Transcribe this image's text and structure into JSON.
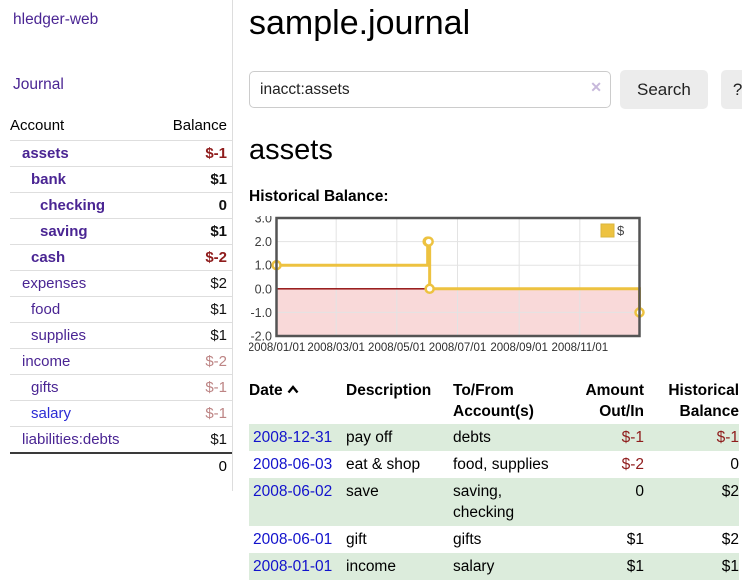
{
  "sidebar": {
    "brand": "hledger-web",
    "journal_link": "Journal",
    "col_account": "Account",
    "col_balance": "Balance",
    "accounts": [
      {
        "name": "assets",
        "level": 1,
        "bold": true,
        "balance": "$-1",
        "balance_style": "neg-strong"
      },
      {
        "name": "bank",
        "level": 2,
        "bold": true,
        "balance": "$1",
        "balance_style": "pos-strong"
      },
      {
        "name": "checking",
        "level": 3,
        "bold": true,
        "balance": "0",
        "balance_style": "pos-strong"
      },
      {
        "name": "saving",
        "level": 3,
        "bold": true,
        "balance": "$1",
        "balance_style": "pos-strong"
      },
      {
        "name": "cash",
        "level": 2,
        "bold": true,
        "balance": "$-2",
        "balance_style": "neg-strong"
      },
      {
        "name": "expenses",
        "level": 1,
        "bold": false,
        "balance": "$2",
        "balance_style": "pos"
      },
      {
        "name": "food",
        "level": 2,
        "bold": false,
        "balance": "$1",
        "balance_style": "pos"
      },
      {
        "name": "supplies",
        "level": 2,
        "bold": false,
        "balance": "$1",
        "balance_style": "pos"
      },
      {
        "name": "income",
        "level": 1,
        "bold": false,
        "balance": "$-2",
        "balance_style": "neg-soft"
      },
      {
        "name": "gifts",
        "level": 2,
        "bold": false,
        "balance": "$-1",
        "balance_style": "neg-soft"
      },
      {
        "name": "salary",
        "level": 2,
        "bold": false,
        "balance": "$-1",
        "balance_style": "neg-soft",
        "link_style": "blue"
      },
      {
        "name": "liabilities:debts",
        "level": 1,
        "bold": false,
        "balance": "$1",
        "balance_style": "pos"
      }
    ],
    "total": "0"
  },
  "header": {
    "title": "sample.journal"
  },
  "search": {
    "value": "inacct:assets",
    "clear_icon": "✕",
    "search_button": "Search",
    "help_button": "?"
  },
  "account_view": {
    "heading": "assets",
    "chart_title": "Historical Balance:"
  },
  "chart_data": {
    "type": "line",
    "step": true,
    "title": "Historical Balance",
    "series": [
      {
        "name": "$",
        "color": "#edc240",
        "points": [
          [
            "2008-01-01",
            1
          ],
          [
            "2008-06-01",
            2
          ],
          [
            "2008-06-02",
            2
          ],
          [
            "2008-06-03",
            0
          ],
          [
            "2008-12-31",
            -1
          ]
        ]
      }
    ],
    "x_domain": [
      "2008-01-01",
      "2008-12-31"
    ],
    "x_ticks": [
      "2008/01/01",
      "2008/03/01",
      "2008/05/01",
      "2008/07/01",
      "2008/09/01",
      "2008/11/01"
    ],
    "y_ticks": [
      3,
      2,
      1,
      0,
      -1,
      -2
    ],
    "ylim": [
      -2,
      3
    ],
    "grid": true,
    "legend": {
      "label": "$",
      "position": "top-right"
    },
    "negative_fill": "#f9d9d9",
    "zero_line_color": "#8b0000"
  },
  "register": {
    "columns": [
      "Date",
      "Description",
      "To/From Account(s)",
      "Amount Out/In",
      "Historical Balance"
    ],
    "sort": {
      "column": "Date",
      "direction": "asc"
    },
    "rows": [
      {
        "date": "2008-12-31",
        "description": "pay off",
        "accounts": "debts",
        "amount": "$-1",
        "amount_negative": true,
        "balance": "$-1",
        "balance_negative": true
      },
      {
        "date": "2008-06-03",
        "description": "eat & shop",
        "accounts": "food, supplies",
        "amount": "$-2",
        "amount_negative": true,
        "balance": "0",
        "balance_negative": false
      },
      {
        "date": "2008-06-02",
        "description": "save",
        "accounts": "saving, checking",
        "amount": "0",
        "amount_negative": false,
        "balance": "$2",
        "balance_negative": false
      },
      {
        "date": "2008-06-01",
        "description": "gift",
        "accounts": "gifts",
        "amount": "$1",
        "amount_negative": false,
        "balance": "$2",
        "balance_negative": false
      },
      {
        "date": "2008-01-01",
        "description": "income",
        "accounts": "salary",
        "amount": "$1",
        "amount_negative": false,
        "balance": "$1",
        "balance_negative": false
      }
    ]
  },
  "colors": {
    "accent_purple": "#4a2593",
    "link_blue": "#1212cc",
    "negative_strong": "#8f1c1c",
    "negative_soft": "#bd8484",
    "row_stripe_green": "#dcecdc",
    "series_gold": "#edc240"
  }
}
